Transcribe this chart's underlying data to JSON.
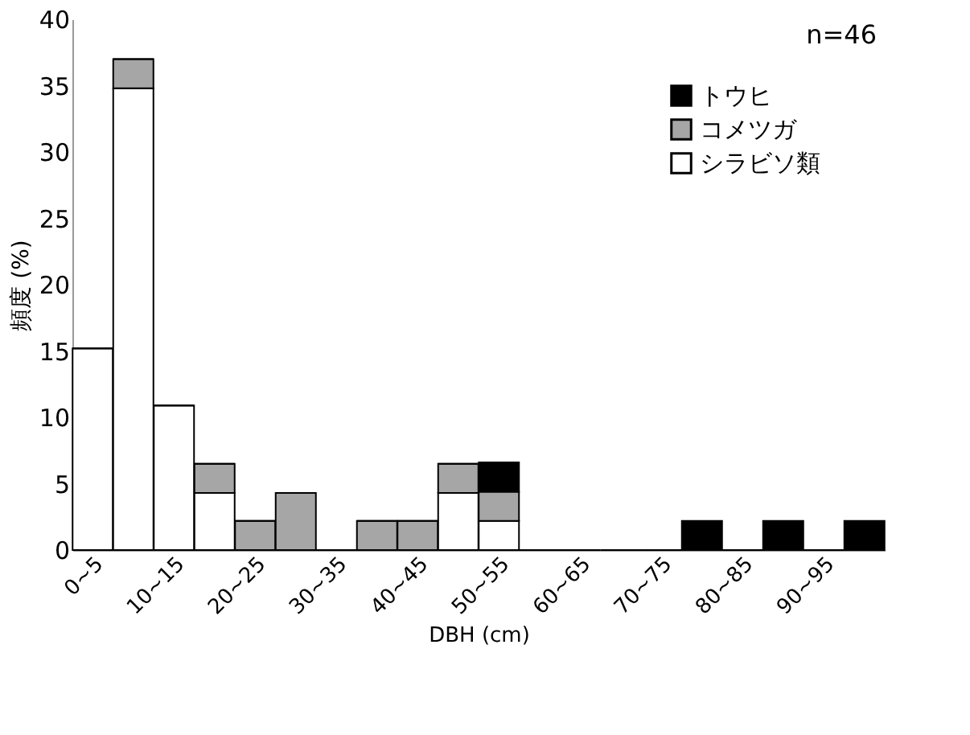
{
  "chart_data": {
    "type": "bar",
    "stacked": true,
    "xlabel": "DBH (cm)",
    "ylabel": "頻度 (%)",
    "categories": [
      "0~5",
      null,
      "10~15",
      null,
      "20~25",
      null,
      "30~35",
      null,
      "40~45",
      null,
      "50~55",
      null,
      "60~65",
      null,
      "70~75",
      null,
      "80~85",
      null,
      "90~95",
      null
    ],
    "series": [
      {
        "name": "シラビソ類",
        "color": "#ffffff",
        "values": [
          15.2,
          34.8,
          10.9,
          4.3,
          0,
          0,
          0,
          0,
          0,
          4.3,
          2.2,
          0,
          0,
          0,
          0,
          0,
          0,
          0,
          0,
          0
        ]
      },
      {
        "name": "コメツガ",
        "color": "#a6a6a6",
        "values": [
          0,
          2.2,
          0,
          2.2,
          2.2,
          4.3,
          0,
          2.2,
          2.2,
          2.2,
          2.2,
          0,
          0,
          0,
          0,
          0,
          0,
          0,
          0,
          0
        ]
      },
      {
        "name": "トウヒ",
        "color": "#000000",
        "values": [
          0,
          0,
          0,
          0,
          0,
          0,
          0,
          0,
          0,
          0,
          2.2,
          0,
          0,
          0,
          0,
          2.2,
          0,
          2.2,
          0,
          2.2
        ]
      }
    ],
    "ylim": [
      0,
      40
    ],
    "yticks": [
      0,
      5,
      10,
      15,
      20,
      25,
      30,
      35,
      40
    ],
    "grid": false,
    "legend": "top right",
    "annotations": [
      "n=46"
    ]
  }
}
